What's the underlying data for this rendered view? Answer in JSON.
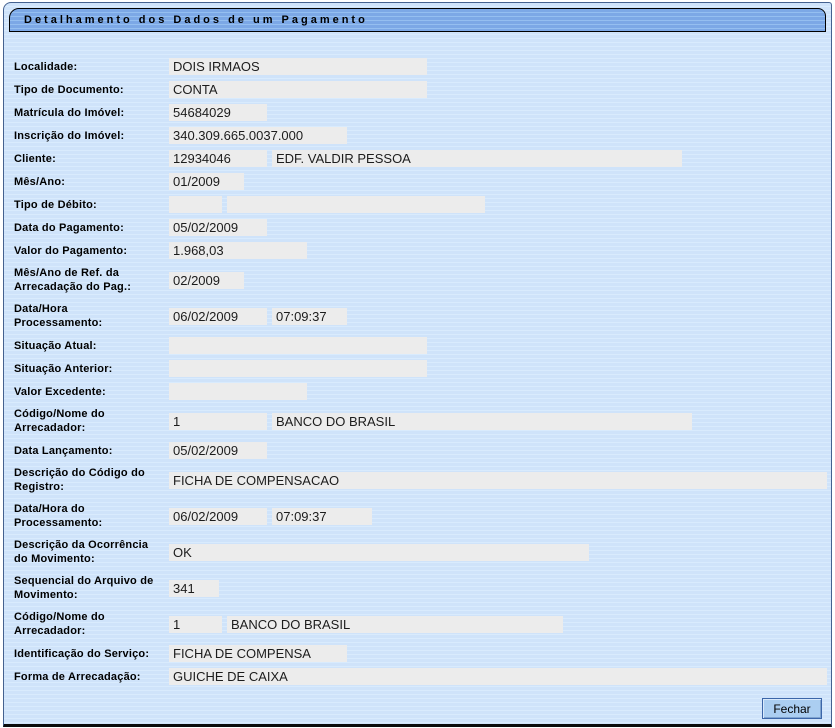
{
  "window": {
    "title": "Detalhamento dos Dados de um Pagamento"
  },
  "form": {
    "localidade": {
      "label": "Localidade:",
      "value": "DOIS IRMAOS"
    },
    "tipo_documento": {
      "label": "Tipo de Documento:",
      "value": "CONTA"
    },
    "matricula_imovel": {
      "label": "Matrícula do Imóvel:",
      "value": "54684029"
    },
    "inscricao_imovel": {
      "label": "Inscrição do Imóvel:",
      "value": "340.309.665.0037.000"
    },
    "cliente": {
      "label": "Cliente:",
      "code": "12934046",
      "name": "EDF. VALDIR PESSOA"
    },
    "mes_ano": {
      "label": "Mês/Ano:",
      "value": "01/2009"
    },
    "tipo_debito": {
      "label": "Tipo de Débito:",
      "code": "",
      "name": ""
    },
    "data_pagamento": {
      "label": "Data do Pagamento:",
      "value": "05/02/2009"
    },
    "valor_pagamento": {
      "label": "Valor do Pagamento:",
      "value": "1.968,03"
    },
    "mes_ano_ref": {
      "label": "Mês/Ano de Ref. da\nArrecadação do Pag.:",
      "value": "02/2009"
    },
    "data_hora_proc": {
      "label": "Data/Hora\nProcessamento:",
      "date": "06/02/2009",
      "time": "07:09:37"
    },
    "situacao_atual": {
      "label": "Situação Atual:",
      "value": ""
    },
    "situacao_anterior": {
      "label": "Situação Anterior:",
      "value": ""
    },
    "valor_excedente": {
      "label": "Valor Excedente:",
      "value": ""
    },
    "arrecadador1": {
      "label": "Código/Nome do\nArrecadador:",
      "code": "1",
      "name": "BANCO DO BRASIL"
    },
    "data_lancamento": {
      "label": "Data Lançamento:",
      "value": "05/02/2009"
    },
    "desc_codigo_registro": {
      "label": "Descrição do Código do\nRegistro:",
      "value": "FICHA DE COMPENSACAO"
    },
    "data_hora_proc2": {
      "label": "Data/Hora do\nProcessamento:",
      "date": "06/02/2009",
      "time": "07:09:37"
    },
    "desc_ocorrencia": {
      "label": "Descrição da Ocorrência\ndo Movimento:",
      "value": "OK"
    },
    "sequencial_arquivo": {
      "label": "Sequencial do Arquivo de\nMovimento:",
      "value": "341"
    },
    "arrecadador2": {
      "label": "Código/Nome do\nArrecadador:",
      "code": "1",
      "name": "BANCO DO BRASIL"
    },
    "identificacao_servico": {
      "label": "Identificação do Serviço:",
      "value": "FICHA DE COMPENSA"
    },
    "forma_arrecadacao": {
      "label": "Forma de Arrecadação:",
      "value": "GUICHE DE CAIXA"
    }
  },
  "footer": {
    "close_label": "Fechar"
  },
  "colors": {
    "titlebar_blue": "#7CA8E6",
    "background_blue": "#CFE3FA",
    "field_gray": "#ECECEC",
    "button_blue": "#ABCEF1",
    "border_dark": "#44618F"
  }
}
